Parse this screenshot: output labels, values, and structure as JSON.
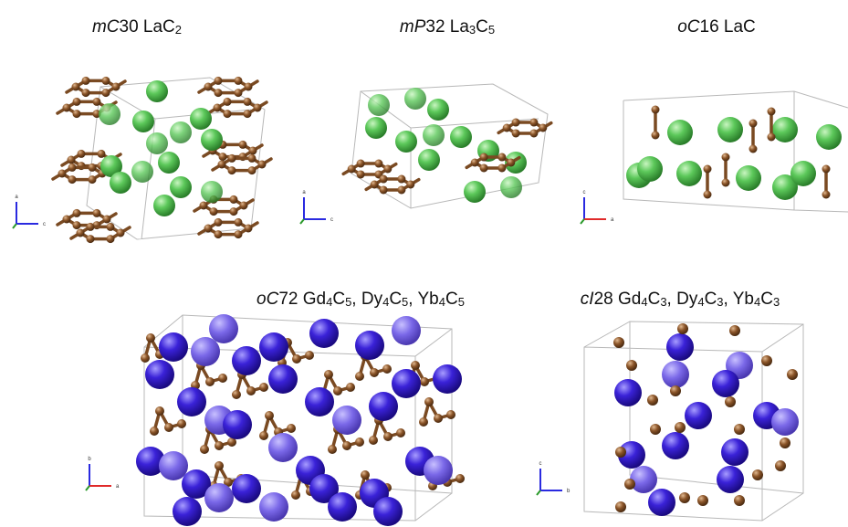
{
  "panels": [
    {
      "label": [
        {
          "text": "mC",
          "style": "italic"
        },
        {
          "text": "30 LaC"
        },
        {
          "text": "2",
          "style": "sub"
        }
      ],
      "axes": {
        "up": "a",
        "right": "c"
      }
    },
    {
      "label": [
        {
          "text": "mP",
          "style": "italic"
        },
        {
          "text": "32 La"
        },
        {
          "text": "3",
          "style": "sub"
        },
        {
          "text": "C"
        },
        {
          "text": "5",
          "style": "sub"
        }
      ],
      "axes": {
        "up": "a",
        "right": "c"
      }
    },
    {
      "label": [
        {
          "text": "oC",
          "style": "italic"
        },
        {
          "text": "16 LaC"
        }
      ],
      "axes": {
        "up": "c",
        "right": "a"
      }
    },
    {
      "label": [
        {
          "text": "oC",
          "style": "italic"
        },
        {
          "text": "72 Gd"
        },
        {
          "text": "4",
          "style": "sub"
        },
        {
          "text": "C"
        },
        {
          "text": "5",
          "style": "sub"
        },
        {
          "text": ", Dy"
        },
        {
          "text": "4",
          "style": "sub"
        },
        {
          "text": "C"
        },
        {
          "text": "5",
          "style": "sub"
        },
        {
          "text": ", Yb"
        },
        {
          "text": "4",
          "style": "sub"
        },
        {
          "text": "C"
        },
        {
          "text": "5",
          "style": "sub"
        }
      ],
      "axes": {
        "up": "b",
        "right": "a"
      }
    },
    {
      "label": [
        {
          "text": "cI",
          "style": "italic"
        },
        {
          "text": "28 Gd"
        },
        {
          "text": "4",
          "style": "sub"
        },
        {
          "text": "C"
        },
        {
          "text": "3",
          "style": "sub"
        },
        {
          "text": ", Dy"
        },
        {
          "text": "4",
          "style": "sub"
        },
        {
          "text": "C"
        },
        {
          "text": "3",
          "style": "sub"
        },
        {
          "text": ", Yb"
        },
        {
          "text": "4",
          "style": "sub"
        },
        {
          "text": "C"
        },
        {
          "text": "3",
          "style": "sub"
        }
      ],
      "axes": {
        "up": "c",
        "right": "b"
      }
    }
  ]
}
